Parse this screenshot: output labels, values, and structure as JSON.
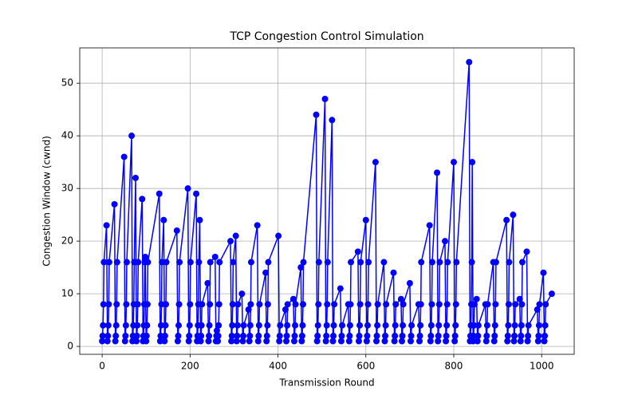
{
  "chart_data": {
    "type": "line",
    "title": "TCP Congestion Control Simulation",
    "x_label": "Transmission Round",
    "y_label": "Congestion Window (cwnd)",
    "color": "#0000ff",
    "markers": true,
    "grid": true,
    "xlim": [
      -51,
      1074
    ],
    "ylim": [
      -1.5,
      56.7
    ],
    "xticks": [
      0,
      200,
      400,
      600,
      800,
      1000
    ],
    "yticks": [
      0,
      10,
      20,
      30,
      40,
      50
    ],
    "x": [
      0,
      1,
      2,
      3,
      4,
      10,
      12,
      13,
      14,
      15,
      16,
      28,
      30,
      31,
      32,
      33,
      34,
      50,
      52,
      53,
      54,
      55,
      56,
      67,
      69,
      70,
      71,
      72,
      73,
      76,
      78,
      79,
      80,
      81,
      82,
      91,
      93,
      94,
      95,
      96,
      97,
      98,
      100,
      101,
      102,
      103,
      104,
      130,
      132,
      133,
      134,
      135,
      136,
      140,
      142,
      143,
      144,
      145,
      146,
      170,
      172,
      173,
      174,
      175,
      176,
      195,
      197,
      198,
      199,
      200,
      201,
      214,
      216,
      217,
      218,
      219,
      220,
      222,
      224,
      225,
      226,
      227,
      240,
      242,
      243,
      244,
      245,
      246,
      257,
      259,
      260,
      261,
      263,
      264,
      265,
      266,
      267,
      292,
      294,
      295,
      296,
      297,
      298,
      304,
      306,
      307,
      308,
      309,
      318,
      320,
      321,
      322,
      333,
      335,
      336,
      337,
      338,
      339,
      353,
      355,
      356,
      357,
      358,
      372,
      374,
      375,
      376,
      377,
      378,
      401,
      403,
      404,
      405,
      417,
      419,
      420,
      421,
      422,
      435,
      437,
      438,
      439,
      440,
      452,
      454,
      455,
      456,
      457,
      458,
      487,
      489,
      490,
      491,
      492,
      493,
      507,
      509,
      510,
      511,
      512,
      513,
      523,
      525,
      526,
      527,
      528,
      542,
      544,
      545,
      546,
      560,
      562,
      563,
      564,
      565,
      566,
      582,
      584,
      585,
      586,
      587,
      588,
      600,
      602,
      603,
      604,
      605,
      606,
      622,
      624,
      625,
      626,
      627,
      641,
      643,
      644,
      645,
      646,
      663,
      665,
      666,
      667,
      668,
      680,
      682,
      683,
      684,
      685,
      700,
      702,
      703,
      704,
      720,
      722,
      723,
      724,
      725,
      726,
      745,
      747,
      748,
      749,
      750,
      751,
      762,
      764,
      765,
      766,
      767,
      768,
      780,
      782,
      783,
      784,
      785,
      786,
      800,
      802,
      803,
      804,
      805,
      806,
      835,
      837,
      838,
      839,
      840,
      841,
      842,
      844,
      845,
      846,
      847,
      852,
      854,
      855,
      856,
      872,
      874,
      875,
      876,
      877,
      890,
      892,
      893,
      894,
      895,
      896,
      920,
      922,
      923,
      924,
      925,
      926,
      935,
      937,
      938,
      939,
      940,
      950,
      952,
      953,
      954,
      955,
      956,
      966,
      968,
      969,
      970,
      990,
      992,
      993,
      994,
      995,
      1004,
      1006,
      1007,
      1008,
      1009,
      1023
    ],
    "values": [
      1,
      2,
      4,
      8,
      16,
      23,
      1,
      2,
      4,
      8,
      16,
      27,
      1,
      2,
      4,
      8,
      16,
      36,
      1,
      2,
      4,
      8,
      16,
      40,
      1,
      2,
      4,
      8,
      16,
      32,
      1,
      2,
      4,
      8,
      16,
      28,
      1,
      2,
      4,
      8,
      16,
      17,
      1,
      2,
      4,
      8,
      16,
      29,
      1,
      2,
      4,
      8,
      16,
      24,
      1,
      2,
      4,
      8,
      16,
      22,
      1,
      2,
      4,
      8,
      16,
      30,
      1,
      2,
      4,
      8,
      16,
      29,
      1,
      2,
      4,
      8,
      16,
      24,
      1,
      2,
      4,
      8,
      12,
      1,
      2,
      4,
      8,
      16,
      17,
      1,
      2,
      3,
      1,
      2,
      4,
      8,
      16,
      20,
      1,
      2,
      4,
      8,
      16,
      21,
      1,
      2,
      4,
      8,
      10,
      1,
      2,
      4,
      7,
      1,
      2,
      4,
      8,
      16,
      23,
      1,
      2,
      4,
      8,
      14,
      1,
      2,
      4,
      8,
      16,
      21,
      1,
      2,
      4,
      7,
      1,
      2,
      4,
      8,
      9,
      1,
      2,
      4,
      8,
      15,
      1,
      2,
      4,
      8,
      16,
      44,
      1,
      2,
      4,
      8,
      16,
      47,
      1,
      2,
      4,
      8,
      16,
      43,
      1,
      2,
      4,
      8,
      11,
      1,
      2,
      4,
      8,
      1,
      2,
      4,
      8,
      16,
      18,
      1,
      2,
      4,
      8,
      16,
      24,
      1,
      2,
      4,
      8,
      16,
      35,
      1,
      2,
      4,
      8,
      16,
      1,
      2,
      4,
      8,
      14,
      1,
      2,
      4,
      8,
      9,
      1,
      2,
      4,
      8,
      12,
      1,
      2,
      4,
      8,
      1,
      2,
      4,
      8,
      16,
      23,
      1,
      2,
      4,
      8,
      16,
      33,
      1,
      2,
      4,
      8,
      16,
      20,
      1,
      2,
      4,
      8,
      16,
      35,
      1,
      2,
      4,
      8,
      16,
      54,
      1,
      2,
      4,
      8,
      16,
      35,
      1,
      2,
      4,
      8,
      9,
      1,
      2,
      4,
      8,
      1,
      2,
      4,
      8,
      16,
      1,
      2,
      4,
      8,
      16,
      24,
      1,
      2,
      4,
      8,
      16,
      25,
      1,
      2,
      4,
      8,
      9,
      1,
      2,
      4,
      8,
      16,
      18,
      1,
      2,
      4,
      7,
      1,
      2,
      4,
      8,
      14,
      1,
      2,
      4,
      8,
      10
    ]
  }
}
